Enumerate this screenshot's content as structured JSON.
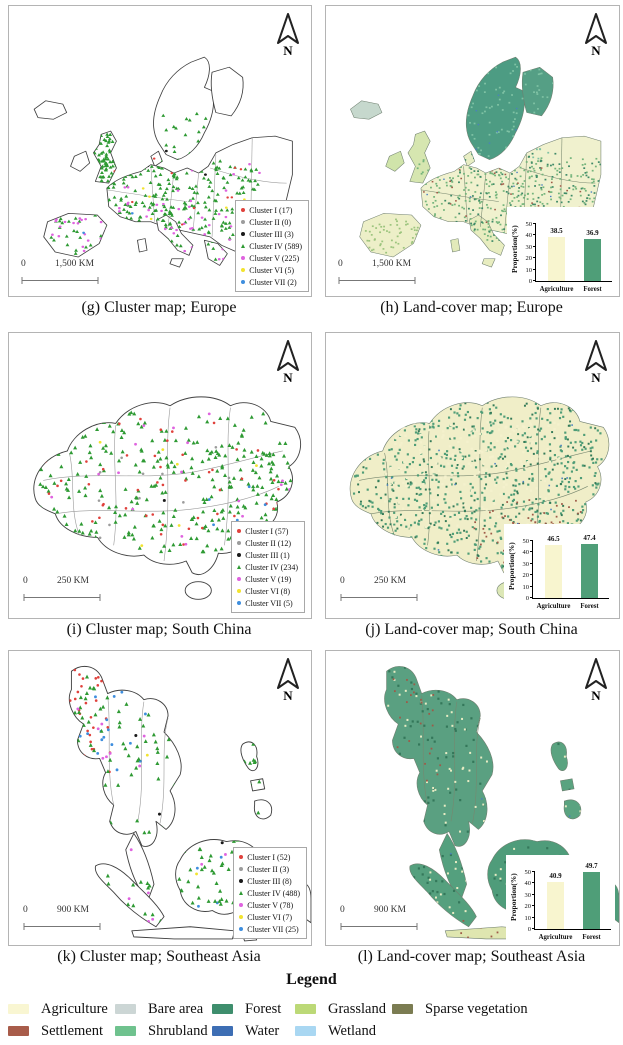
{
  "north_label": "N",
  "panels": {
    "g": {
      "caption": "(g) Cluster map; Europe",
      "scale_zero": "0",
      "scale_label": "1,500 KM",
      "cluster_legend": [
        {
          "label": "Cluster I (17)",
          "color": "#e0413c",
          "shape": "circle"
        },
        {
          "label": "Cluster II (0)",
          "color": "#9c9c9c",
          "shape": "circle"
        },
        {
          "label": "Cluster III (3)",
          "color": "#1a1a1a",
          "shape": "circle"
        },
        {
          "label": "Cluster IV (589)",
          "color": "#2e9a33",
          "shape": "triangle"
        },
        {
          "label": "Cluster V (225)",
          "color": "#df63df",
          "shape": "circle"
        },
        {
          "label": "Cluster VI (5)",
          "color": "#f2e32f",
          "shape": "circle"
        },
        {
          "label": "Cluster VII (2)",
          "color": "#3e8ede",
          "shape": "circle"
        }
      ]
    },
    "h": {
      "caption": "(h) Land-cover map; Europe",
      "scale_zero": "0",
      "scale_label": "1,500 KM",
      "chart": {
        "ylabel": "Proportion(%)",
        "ylim": [
          0,
          50
        ],
        "yticks": [
          0,
          10,
          20,
          30,
          40,
          50
        ],
        "categories": [
          "Agriculture",
          "Forest"
        ],
        "values": [
          38.5,
          36.9
        ],
        "bar_colors": [
          "#f8f5cf",
          "#4f9e78"
        ]
      }
    },
    "i": {
      "caption": "(i) Cluster map; South China",
      "scale_zero": "0",
      "scale_label": "250 KM",
      "cluster_legend": [
        {
          "label": "Cluster I (57)",
          "color": "#e0413c",
          "shape": "circle"
        },
        {
          "label": "Cluster II (12)",
          "color": "#9c9c9c",
          "shape": "circle"
        },
        {
          "label": "Cluster III (1)",
          "color": "#1a1a1a",
          "shape": "circle"
        },
        {
          "label": "Cluster IV (234)",
          "color": "#2e9a33",
          "shape": "triangle"
        },
        {
          "label": "Cluster V (19)",
          "color": "#df63df",
          "shape": "circle"
        },
        {
          "label": "Cluster VI (8)",
          "color": "#f2e32f",
          "shape": "circle"
        },
        {
          "label": "Cluster VII (5)",
          "color": "#3e8ede",
          "shape": "circle"
        }
      ]
    },
    "j": {
      "caption": "(j) Land-cover map; South China",
      "scale_zero": "0",
      "scale_label": "250 KM",
      "chart": {
        "ylabel": "Proportion(%)",
        "ylim": [
          0,
          50
        ],
        "yticks": [
          0,
          10,
          20,
          30,
          40,
          50
        ],
        "categories": [
          "Agriculture",
          "Forest"
        ],
        "values": [
          46.5,
          47.4
        ],
        "bar_colors": [
          "#f8f5cf",
          "#4f9e78"
        ]
      }
    },
    "k": {
      "caption": "(k) Cluster map; Southeast Asia",
      "scale_zero": "0",
      "scale_label": "900 KM",
      "cluster_legend": [
        {
          "label": "Cluster I (52)",
          "color": "#e0413c",
          "shape": "circle"
        },
        {
          "label": "Cluster II (3)",
          "color": "#9c9c9c",
          "shape": "circle"
        },
        {
          "label": "Cluster III (8)",
          "color": "#1a1a1a",
          "shape": "circle"
        },
        {
          "label": "Cluster IV (488)",
          "color": "#2e9a33",
          "shape": "triangle"
        },
        {
          "label": "Cluster V (78)",
          "color": "#df63df",
          "shape": "circle"
        },
        {
          "label": "Cluster VI (7)",
          "color": "#f2e32f",
          "shape": "circle"
        },
        {
          "label": "Cluster VII (25)",
          "color": "#3e8ede",
          "shape": "circle"
        }
      ]
    },
    "l": {
      "caption": "(l) Land-cover map; Southeast Asia",
      "scale_zero": "0",
      "scale_label": "900 KM",
      "chart": {
        "ylabel": "Proportion(%)",
        "ylim": [
          0,
          50
        ],
        "yticks": [
          0,
          10,
          20,
          30,
          40,
          50
        ],
        "categories": [
          "Agriculture",
          "Forest"
        ],
        "values": [
          40.9,
          49.7
        ],
        "bar_colors": [
          "#f8f5cf",
          "#4f9e78"
        ]
      }
    }
  },
  "legend": {
    "title": "Legend",
    "items": [
      {
        "label": "Agriculture",
        "color": "#f9f6d2",
        "row": 0,
        "col": 0
      },
      {
        "label": "Bare area",
        "color": "#ccd6d5",
        "row": 0,
        "col": 1
      },
      {
        "label": "Forest",
        "color": "#3e8e6d",
        "row": 0,
        "col": 2
      },
      {
        "label": "Grassland",
        "color": "#bcd977",
        "row": 0,
        "col": 3
      },
      {
        "label": "Sparse vegetation",
        "color": "#7b7c52",
        "row": 0,
        "col": 4
      },
      {
        "label": "Settlement",
        "color": "#a85c4a",
        "row": 1,
        "col": 0
      },
      {
        "label": "Shrubland",
        "color": "#6fc28e",
        "row": 1,
        "col": 1
      },
      {
        "label": "Water",
        "color": "#3d6eb4",
        "row": 1,
        "col": 2
      },
      {
        "label": "Wetland",
        "color": "#a9d7f2",
        "row": 1,
        "col": 3
      }
    ]
  },
  "chart_data": [
    {
      "type": "bar",
      "panel": "h",
      "region": "Europe",
      "categories": [
        "Agriculture",
        "Forest"
      ],
      "values": [
        38.5,
        36.9
      ],
      "ylabel": "Proportion(%)",
      "ylim": [
        0,
        50
      ],
      "yticks": [
        0,
        10,
        20,
        30,
        40,
        50
      ]
    },
    {
      "type": "bar",
      "panel": "j",
      "region": "South China",
      "categories": [
        "Agriculture",
        "Forest"
      ],
      "values": [
        46.5,
        47.4
      ],
      "ylabel": "Proportion(%)",
      "ylim": [
        0,
        50
      ],
      "yticks": [
        0,
        10,
        20,
        30,
        40,
        50
      ]
    },
    {
      "type": "bar",
      "panel": "l",
      "region": "Southeast Asia",
      "categories": [
        "Agriculture",
        "Forest"
      ],
      "values": [
        40.9,
        49.7
      ],
      "ylabel": "Proportion(%)",
      "ylim": [
        0,
        50
      ],
      "yticks": [
        0,
        10,
        20,
        30,
        40,
        50
      ]
    }
  ]
}
